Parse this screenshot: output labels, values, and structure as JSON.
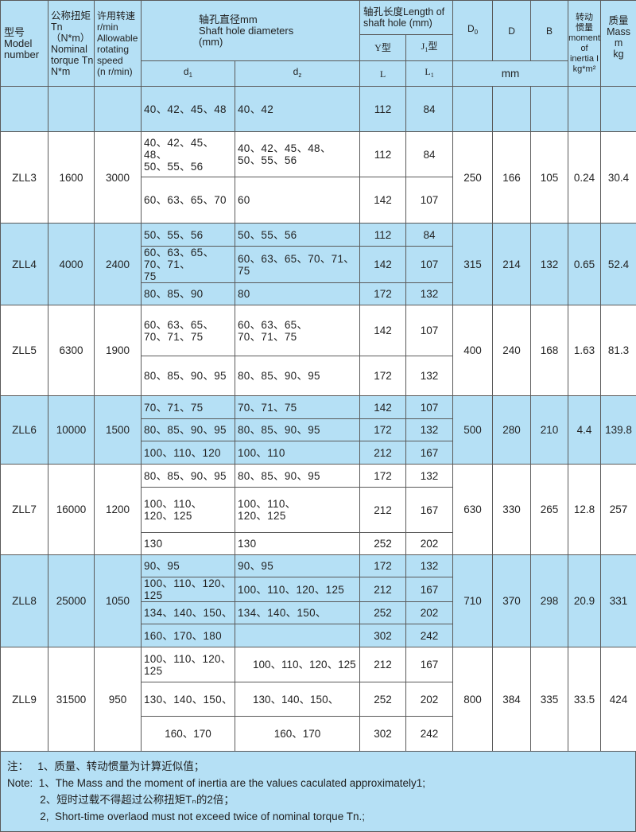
{
  "header": {
    "model": "型号\nModel\nnumber",
    "torque": "公称扭矩\nTn（N*m）\nNominal\ntorque Tn\nN*m",
    "speed": "许用转速\nr/min\nAllowable\nrotating\nspeed\n(n r/min)",
    "shaft_diam": "轴孔直径mm\nShaft hole diameters\n(mm)",
    "shaft_len": "轴孔长度Length of\nshaft hole (mm)",
    "y_type": "Y型",
    "j_type": {
      "base": "J",
      "sub": "1",
      "suffix": "型"
    },
    "d1": {
      "base": "d",
      "sub": "1"
    },
    "d2": {
      "base": "d",
      "sub": "z"
    },
    "L": "L",
    "L1": {
      "base": "L",
      "sub": "1"
    },
    "D0": {
      "base": "D",
      "sub": "0"
    },
    "D": "D",
    "B": "B",
    "mm": "mm",
    "inertia": "转动\n惯量\nmoment\nof\ninertia I\nkg*m²",
    "mass": "质量\nMass\nm\nkg"
  },
  "groups": [
    {
      "model": "",
      "torque": "",
      "speed": "",
      "D0": "",
      "D": "",
      "B": "",
      "inertia": "",
      "mass": "",
      "bg": "blue",
      "rows": [
        {
          "d1": "40、42、45、48",
          "d2": "40、42",
          "L": "112",
          "L1": "84"
        }
      ]
    },
    {
      "model": "ZLL3",
      "torque": "1600",
      "speed": "3000",
      "D0": "250",
      "D": "166",
      "B": "105",
      "inertia": "0.24",
      "mass": "30.4",
      "bg": "white",
      "rows": [
        {
          "d1": "40、42、45、48、\n50、55、56",
          "d2": "40、42、45、48、\n50、55、56",
          "L": "112",
          "L1": "84"
        },
        {
          "d1": "60、63、65、70",
          "d2": "60",
          "L": "142",
          "L1": "107"
        }
      ]
    },
    {
      "model": "ZLL4",
      "torque": "4000",
      "speed": "2400",
      "D0": "315",
      "D": "214",
      "B": "132",
      "inertia": "0.65",
      "mass": "52.4",
      "bg": "blue",
      "rows": [
        {
          "d1": "50、55、56",
          "d2": "50、55、56",
          "L": "112",
          "L1": "84"
        },
        {
          "d1": "60、63、65、70、71、\n75",
          "d2": "60、63、65、70、71、\n75",
          "L": "142",
          "L1": "107"
        },
        {
          "d1": "80、85、90",
          "d2": "80",
          "L": "172",
          "L1": "132"
        }
      ]
    },
    {
      "model": "ZLL5",
      "torque": "6300",
      "speed": "1900",
      "D0": "400",
      "D": "240",
      "B": "168",
      "inertia": "1.63",
      "mass": "81.3",
      "bg": "white",
      "rows": [
        {
          "d1": "60、63、65、\n70、71、75",
          "d2": "60、63、65、\n70、71、75",
          "L": "142",
          "L1": "107"
        },
        {
          "d1": "80、85、90、95",
          "d2": "80、85、90、95",
          "L": "172",
          "L1": "132"
        }
      ]
    },
    {
      "model": "ZLL6",
      "torque": "10000",
      "speed": "1500",
      "D0": "500",
      "D": "280",
      "B": "210",
      "inertia": "4.4",
      "mass": "139.8",
      "bg": "blue",
      "rows": [
        {
          "d1": "70、71、75",
          "d2": "70、71、75",
          "L": "142",
          "L1": "107"
        },
        {
          "d1": "80、85、90、95",
          "d2": "80、85、90、95",
          "L": "172",
          "L1": "132"
        },
        {
          "d1": "100、110、120",
          "d2": "100、110",
          "L": "212",
          "L1": "167"
        }
      ]
    },
    {
      "model": "ZLL7",
      "torque": "16000",
      "speed": "1200",
      "D0": "630",
      "D": "330",
      "B": "265",
      "inertia": "12.8",
      "mass": "257",
      "bg": "white",
      "rows": [
        {
          "d1": "80、85、90、95",
          "d2": "80、85、90、95",
          "L": "172",
          "L1": "132"
        },
        {
          "d1": "100、110、\n120、125",
          "d2": "100、110、\n120、125",
          "L": "212",
          "L1": "167"
        },
        {
          "d1": "130",
          "d2": "130",
          "L": "252",
          "L1": "202"
        }
      ]
    },
    {
      "model": "ZLL8",
      "torque": "25000",
      "speed": "1050",
      "D0": "710",
      "D": "370",
      "B": "298",
      "inertia": "20.9",
      "mass": "331",
      "bg": "blue",
      "rows": [
        {
          "d1": "90、95",
          "d2": "90、95",
          "L": "172",
          "L1": "132"
        },
        {
          "d1": "100、110、120、125",
          "d2": "100、110、120、125",
          "L": "212",
          "L1": "167"
        },
        {
          "d1": "134、140、150、",
          "d2": "134、140、150、",
          "L": "252",
          "L1": "202"
        },
        {
          "d1": "160、170、180",
          "d2": "",
          "L": "302",
          "L1": "242"
        }
      ]
    },
    {
      "model": "ZLL9",
      "torque": "31500",
      "speed": "950",
      "D0": "800",
      "D": "384",
      "B": "335",
      "inertia": "33.5",
      "mass": "424",
      "bg": "white",
      "rows": [
        {
          "d1": "100、110、120、125",
          "d2": "100、110、120、125",
          "L": "212",
          "L1": "167"
        },
        {
          "d1": "130、140、150、",
          "d2": "130、140、150、",
          "L": "252",
          "L1": "202"
        },
        {
          "d1": "160、170",
          "d2": "160、170",
          "L": "302",
          "L1": "242"
        }
      ]
    }
  ],
  "notes": [
    "注：   1、质量、转动惯量为计算近似值；",
    "Note:  1、The Mass and the moment of inertia are the values caculated approximately1;",
    "           2、短时过载不得超过公称扭矩Tₙ的2倍；",
    "           2,  Short-time overlaod must not exceed twice of nominal torque Tn.;"
  ]
}
